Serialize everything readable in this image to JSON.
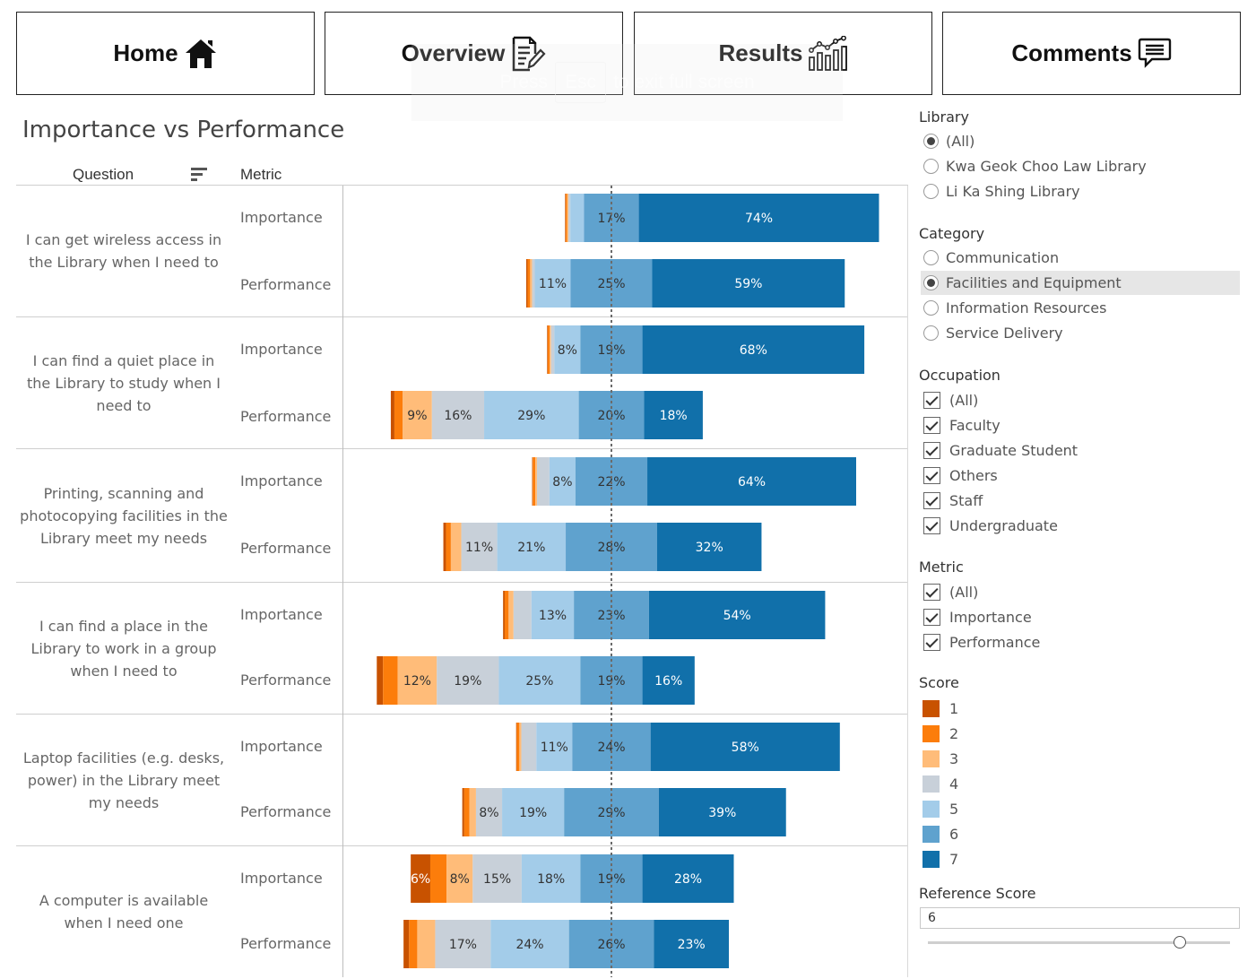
{
  "nav": {
    "home": {
      "label": "Home",
      "icon": "home-icon"
    },
    "overview": {
      "label": "Overview",
      "icon": "document-edit-icon"
    },
    "results": {
      "label": "Results",
      "icon": "bar-chart-trend-icon"
    },
    "comments": {
      "label": "Comments",
      "icon": "speech-bubble-icon"
    }
  },
  "fullscreen_notice": {
    "press": "Press",
    "key": "Esc",
    "rest": "to exit full screen"
  },
  "view": {
    "title": "Importance vs Performance",
    "col_question": "Question",
    "col_metric": "Metric"
  },
  "filters": {
    "library": {
      "title": "Library",
      "options": [
        {
          "label": "(All)",
          "selected": true
        },
        {
          "label": "Kwa Geok Choo Law Library",
          "selected": false
        },
        {
          "label": "Li Ka Shing Library",
          "selected": false
        }
      ]
    },
    "category": {
      "title": "Category",
      "options": [
        {
          "label": "Communication",
          "selected": false
        },
        {
          "label": "Facilities and Equipment",
          "selected": true
        },
        {
          "label": "Information Resources",
          "selected": false
        },
        {
          "label": "Service Delivery",
          "selected": false
        }
      ]
    },
    "occupation": {
      "title": "Occupation",
      "options": [
        {
          "label": "(All)",
          "checked": true
        },
        {
          "label": "Faculty",
          "checked": true
        },
        {
          "label": "Graduate Student",
          "checked": true
        },
        {
          "label": "Others",
          "checked": true
        },
        {
          "label": "Staff",
          "checked": true
        },
        {
          "label": "Undergraduate",
          "checked": true
        }
      ]
    },
    "metric": {
      "title": "Metric",
      "options": [
        {
          "label": "(All)",
          "checked": true
        },
        {
          "label": "Importance",
          "checked": true
        },
        {
          "label": "Performance",
          "checked": true
        }
      ]
    },
    "score": {
      "title": "Score",
      "items": [
        {
          "label": "1",
          "color": "#c85200"
        },
        {
          "label": "2",
          "color": "#fc7d0b"
        },
        {
          "label": "3",
          "color": "#ffbc79"
        },
        {
          "label": "4",
          "color": "#c8d0d9"
        },
        {
          "label": "5",
          "color": "#a3cce9"
        },
        {
          "label": "6",
          "color": "#5fa2ce"
        },
        {
          "label": "7",
          "color": "#1170aa"
        }
      ]
    },
    "reference": {
      "title": "Reference Score",
      "value": "6"
    }
  },
  "chart_data": {
    "type": "bar",
    "stacked": "diverging",
    "title": "Importance vs Performance",
    "score_levels": [
      "1",
      "2",
      "3",
      "4",
      "5",
      "6",
      "7"
    ],
    "reference_line": "dashed vertical line at the reference score",
    "rows": [
      {
        "question": "I can get wireless access in the Library when I need to",
        "importance": [
          0.2,
          0.4,
          0.4,
          0.6,
          4.2,
          16.8,
          73.6
        ],
        "performance": [
          0.4,
          0.8,
          0.6,
          0.8,
          11.0,
          25.0,
          59.0
        ],
        "labels": {
          "importance": [
            "",
            "",
            "",
            "",
            "",
            "17%",
            "74%"
          ],
          "performance": [
            "",
            "",
            "",
            "",
            "11%",
            "25%",
            "59%"
          ]
        }
      },
      {
        "question": "I can find a quiet place in the Library to study when I need to",
        "importance": [
          0.2,
          0.6,
          0.4,
          1.0,
          8.0,
          19.0,
          68.0
        ],
        "performance": [
          1.1,
          2.5,
          9.0,
          16.0,
          29.0,
          20.0,
          18.0
        ],
        "labels": {
          "importance": [
            "",
            "",
            "",
            "",
            "8%",
            "19%",
            "68%"
          ],
          "performance": [
            "",
            "",
            "9%",
            "16%",
            "29%",
            "20%",
            "18%"
          ]
        }
      },
      {
        "question": "Printing, scanning and photocopying facilities in the Library meet my needs",
        "importance": [
          0.2,
          0.8,
          0.5,
          3.8,
          8.0,
          22.0,
          64.0
        ],
        "performance": [
          0.8,
          1.5,
          3.2,
          11.0,
          21.0,
          28.0,
          32.0
        ],
        "labels": {
          "importance": [
            "",
            "",
            "",
            "",
            "8%",
            "22%",
            "64%"
          ],
          "performance": [
            "",
            "",
            "",
            "11%",
            "21%",
            "28%",
            "32%"
          ]
        }
      },
      {
        "question": "I can find a place in the Library to work in a group when I need to",
        "importance": [
          0.5,
          1.2,
          1.5,
          5.5,
          13.0,
          23.0,
          54.0
        ],
        "performance": [
          1.9,
          4.5,
          12.0,
          19.0,
          25.0,
          19.0,
          16.0
        ],
        "labels": {
          "importance": [
            "",
            "",
            "",
            "",
            "13%",
            "23%",
            "54%"
          ],
          "performance": [
            "",
            "",
            "12%",
            "19%",
            "25%",
            "19%",
            "16%"
          ]
        }
      },
      {
        "question": "Laptop facilities (e.g. desks, power) in the Library meet my needs",
        "importance": [
          0.2,
          0.8,
          0.6,
          4.6,
          11.0,
          24.0,
          58.0
        ],
        "performance": [
          0.6,
          1.6,
          2.0,
          8.0,
          19.0,
          29.0,
          39.0
        ],
        "labels": {
          "importance": [
            "",
            "",
            "",
            "",
            "11%",
            "24%",
            "58%"
          ],
          "performance": [
            "",
            "",
            "",
            "8%",
            "19%",
            "29%",
            "39%"
          ]
        }
      },
      {
        "question": "A computer is available when I need one",
        "importance": [
          6.0,
          5.0,
          8.0,
          15.0,
          18.0,
          19.0,
          28.0
        ],
        "performance": [
          1.7,
          2.5,
          5.5,
          17.0,
          24.0,
          26.0,
          23.0
        ],
        "labels": {
          "importance": [
            "6%",
            "",
            "8%",
            "15%",
            "18%",
            "19%",
            "28%"
          ],
          "performance": [
            "",
            "",
            "",
            "17%",
            "24%",
            "26%",
            "23%"
          ]
        }
      }
    ]
  }
}
